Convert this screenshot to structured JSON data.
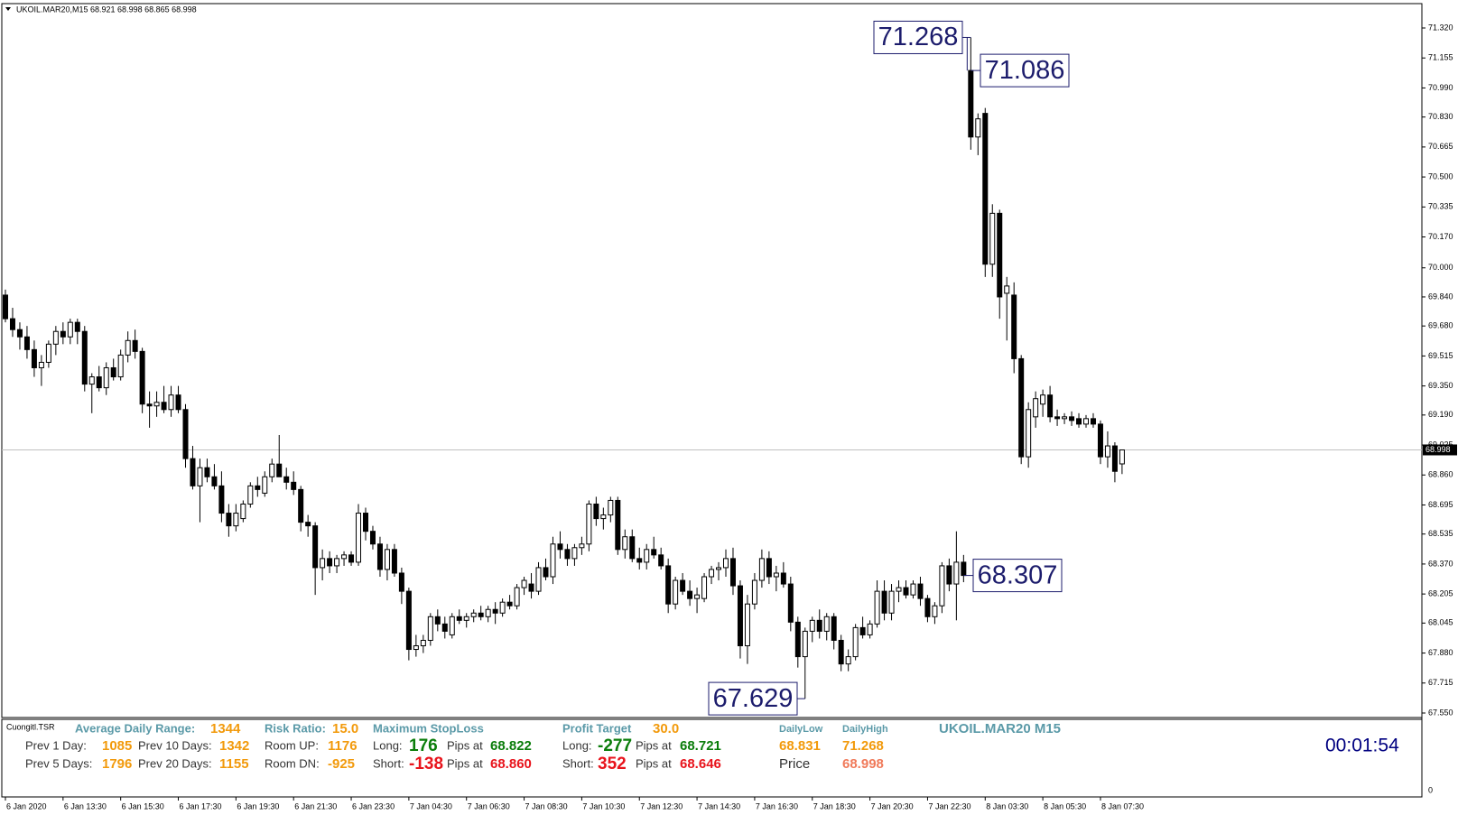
{
  "chart_data": {
    "type": "candlestick",
    "title": "UKOIL.MAR20,M15  68.921 68.998 68.865 68.998",
    "up_color": "#ffffff",
    "down_color": "#000000",
    "categories": [
      "6 Jan 2020",
      null,
      null,
      null,
      null,
      null,
      null,
      null,
      "6 Jan 13:30",
      null,
      null,
      null,
      null,
      null,
      null,
      null,
      "6 Jan 15:30",
      null,
      null,
      null,
      null,
      null,
      null,
      null,
      "6 Jan 17:30",
      null,
      null,
      null,
      null,
      null,
      null,
      null,
      "6 Jan 19:30",
      null,
      null,
      null,
      null,
      null,
      null,
      null,
      "6 Jan 21:30",
      null,
      null,
      null,
      null,
      null,
      null,
      null,
      "6 Jan 23:30",
      null,
      null,
      null,
      null,
      null,
      null,
      null,
      "7 Jan 04:30",
      null,
      null,
      null,
      null,
      null,
      null,
      null,
      "7 Jan 06:30",
      null,
      null,
      null,
      null,
      null,
      null,
      null,
      "7 Jan 08:30",
      null,
      null,
      null,
      null,
      null,
      null,
      null,
      "7 Jan 10:30",
      null,
      null,
      null,
      null,
      null,
      null,
      null,
      "7 Jan 12:30",
      null,
      null,
      null,
      null,
      null,
      null,
      null,
      "7 Jan 14:30",
      null,
      null,
      null,
      null,
      null,
      null,
      null,
      "7 Jan 16:30",
      null,
      null,
      null,
      null,
      null,
      null,
      null,
      "7 Jan 18:30",
      null,
      null,
      null,
      null,
      null,
      null,
      null,
      "7 Jan 20:30",
      null,
      null,
      null,
      null,
      null,
      null,
      null,
      "7 Jan 22:30",
      null,
      null,
      null,
      null,
      null,
      null,
      null,
      "8 Jan 03:30",
      null,
      null,
      null,
      null,
      null,
      null,
      null,
      "8 Jan 05:30",
      null,
      null,
      null,
      null,
      null,
      null,
      null,
      "8 Jan 07:30",
      null,
      null,
      null
    ],
    "open": [
      69.85,
      69.72,
      69.66,
      69.62,
      69.55,
      69.45,
      69.48,
      69.58,
      69.65,
      69.62,
      69.7,
      69.65,
      69.36,
      69.4,
      69.34,
      69.45,
      69.4,
      69.52,
      69.6,
      69.54,
      69.25,
      69.24,
      69.26,
      69.22,
      69.3,
      69.22,
      68.95,
      68.8,
      68.9,
      68.85,
      68.8,
      68.65,
      68.58,
      68.62,
      68.7,
      68.8,
      68.76,
      68.85,
      68.92,
      68.85,
      68.82,
      68.78,
      68.6,
      68.58,
      68.35,
      68.4,
      68.36,
      68.4,
      68.42,
      68.38,
      68.65,
      68.55,
      68.48,
      68.34,
      68.45,
      68.32,
      68.22,
      67.9,
      67.92,
      67.95,
      68.08,
      68.04,
      67.98,
      68.08,
      68.06,
      68.08,
      68.1,
      68.08,
      68.12,
      68.1,
      68.16,
      68.14,
      68.24,
      68.26,
      68.22,
      68.35,
      68.3,
      68.48,
      68.45,
      68.4,
      68.46,
      68.48,
      68.7,
      68.62,
      68.64,
      68.72,
      68.45,
      68.52,
      68.4,
      68.38,
      68.45,
      68.42,
      68.36,
      68.15,
      68.28,
      68.22,
      68.18,
      68.18,
      68.3,
      68.34,
      68.35,
      68.4,
      68.25,
      67.92,
      68.15,
      68.28,
      68.4,
      68.3,
      68.32,
      68.26,
      68.05,
      67.86,
      68.0,
      68.06,
      68.0,
      68.08,
      67.95,
      67.82,
      67.86,
      68.02,
      67.98,
      68.04,
      68.22,
      68.1,
      68.22,
      68.24,
      68.2,
      68.26,
      68.18,
      68.08,
      68.14,
      68.36,
      68.26,
      68.38,
      71.086,
      70.72,
      70.85,
      70.02,
      70.3,
      69.86,
      69.85,
      69.5,
      68.96,
      69.18,
      69.25,
      69.3,
      69.18,
      69.17,
      69.18,
      69.17,
      69.14,
      69.17,
      69.14,
      68.96,
      69.02,
      68.921
    ],
    "high": [
      69.88,
      69.78,
      69.7,
      69.68,
      69.6,
      69.52,
      69.6,
      69.68,
      69.7,
      69.72,
      69.72,
      69.68,
      69.42,
      69.46,
      69.48,
      69.5,
      69.55,
      69.65,
      69.66,
      69.56,
      69.32,
      69.32,
      69.35,
      69.35,
      69.35,
      69.25,
      69.02,
      68.95,
      68.95,
      68.92,
      68.88,
      68.7,
      68.7,
      68.72,
      68.82,
      68.85,
      68.88,
      68.95,
      69.08,
      68.9,
      68.88,
      68.8,
      68.64,
      68.6,
      68.45,
      68.44,
      68.42,
      68.44,
      68.44,
      68.7,
      68.68,
      68.58,
      68.52,
      68.48,
      68.48,
      68.35,
      68.24,
      67.98,
      67.98,
      68.1,
      68.12,
      68.08,
      68.1,
      68.12,
      68.1,
      68.12,
      68.14,
      68.14,
      68.16,
      68.18,
      68.2,
      68.26,
      68.3,
      68.32,
      68.38,
      68.4,
      68.52,
      68.55,
      68.48,
      68.48,
      68.52,
      68.72,
      68.74,
      68.68,
      68.74,
      68.74,
      68.56,
      68.56,
      68.46,
      68.48,
      68.52,
      68.46,
      68.4,
      68.3,
      68.32,
      68.28,
      68.24,
      68.32,
      68.36,
      68.38,
      68.45,
      68.46,
      68.28,
      68.2,
      68.32,
      68.45,
      68.44,
      68.36,
      68.38,
      68.3,
      68.08,
      68.02,
      68.08,
      68.12,
      68.1,
      68.1,
      67.98,
      67.9,
      68.04,
      68.08,
      68.06,
      68.28,
      68.28,
      68.26,
      68.28,
      68.28,
      68.28,
      68.3,
      68.2,
      68.16,
      68.38,
      68.4,
      68.55,
      68.42,
      71.268,
      70.85,
      70.88,
      70.35,
      70.32,
      69.95,
      69.92,
      69.52,
      69.26,
      69.32,
      69.33,
      69.35,
      69.22,
      69.2,
      69.21,
      69.2,
      69.19,
      69.2,
      69.16,
      69.1,
      69.04,
      68.998
    ],
    "low": [
      69.7,
      69.62,
      69.55,
      69.5,
      69.4,
      69.35,
      69.45,
      69.52,
      69.58,
      69.58,
      69.58,
      69.32,
      69.2,
      69.32,
      69.3,
      69.38,
      69.38,
      69.48,
      69.5,
      69.2,
      69.12,
      69.18,
      69.2,
      69.18,
      69.2,
      68.9,
      68.78,
      68.6,
      68.82,
      68.78,
      68.6,
      68.52,
      68.55,
      68.6,
      68.68,
      68.74,
      68.74,
      68.82,
      68.88,
      68.78,
      68.75,
      68.55,
      68.52,
      68.2,
      68.28,
      68.32,
      68.32,
      68.36,
      68.36,
      68.36,
      68.5,
      68.45,
      68.3,
      68.28,
      68.3,
      68.15,
      67.84,
      67.86,
      67.88,
      67.92,
      68.0,
      67.96,
      67.96,
      68.04,
      68.02,
      68.05,
      68.06,
      68.05,
      68.04,
      68.08,
      68.12,
      68.12,
      68.2,
      68.18,
      68.2,
      68.28,
      68.26,
      68.4,
      68.36,
      68.36,
      68.42,
      68.44,
      68.58,
      68.56,
      68.6,
      68.42,
      68.4,
      68.38,
      68.34,
      68.34,
      68.4,
      68.34,
      68.1,
      68.12,
      68.2,
      68.14,
      68.1,
      68.16,
      68.26,
      68.28,
      68.3,
      68.2,
      67.85,
      67.82,
      68.12,
      68.24,
      68.26,
      68.22,
      68.24,
      68.0,
      67.8,
      67.629,
      67.94,
      67.96,
      67.95,
      67.9,
      67.78,
      67.78,
      67.84,
      67.96,
      67.96,
      68.02,
      68.06,
      68.06,
      68.16,
      68.18,
      68.18,
      68.14,
      68.05,
      68.04,
      68.1,
      68.22,
      68.06,
      68.27,
      70.65,
      70.62,
      69.95,
      69.95,
      69.72,
      69.6,
      69.42,
      68.92,
      68.9,
      69.12,
      69.18,
      69.15,
      69.13,
      69.14,
      69.13,
      69.12,
      69.12,
      69.12,
      68.92,
      68.9,
      68.82,
      68.865
    ],
    "close": [
      69.72,
      69.66,
      69.62,
      69.55,
      69.45,
      69.48,
      69.58,
      69.65,
      69.62,
      69.7,
      69.65,
      69.36,
      69.4,
      69.34,
      69.45,
      69.4,
      69.52,
      69.6,
      69.54,
      69.25,
      69.24,
      69.26,
      69.22,
      69.3,
      69.22,
      68.95,
      68.8,
      68.9,
      68.85,
      68.8,
      68.65,
      68.58,
      68.65,
      68.7,
      68.8,
      68.78,
      68.85,
      68.92,
      68.85,
      68.82,
      68.78,
      68.6,
      68.58,
      68.35,
      68.4,
      68.36,
      68.4,
      68.42,
      68.38,
      68.65,
      68.55,
      68.48,
      68.34,
      68.45,
      68.32,
      68.22,
      67.9,
      67.92,
      67.95,
      68.08,
      68.04,
      68.0,
      68.08,
      68.06,
      68.08,
      68.1,
      68.08,
      68.12,
      68.1,
      68.16,
      68.14,
      68.24,
      68.28,
      68.22,
      68.35,
      68.3,
      68.48,
      68.45,
      68.4,
      68.46,
      68.48,
      68.7,
      68.62,
      68.64,
      68.72,
      68.45,
      68.52,
      68.4,
      68.38,
      68.45,
      68.42,
      68.36,
      68.15,
      68.28,
      68.22,
      68.18,
      68.2,
      68.3,
      68.34,
      68.35,
      68.4,
      68.25,
      67.92,
      68.15,
      68.28,
      68.4,
      68.3,
      68.32,
      68.26,
      68.05,
      67.86,
      68.0,
      68.06,
      68.0,
      68.08,
      67.95,
      67.82,
      67.86,
      68.02,
      67.98,
      68.04,
      68.22,
      68.1,
      68.22,
      68.24,
      68.2,
      68.26,
      68.18,
      68.08,
      68.14,
      68.36,
      68.26,
      68.38,
      68.307,
      70.72,
      70.82,
      70.02,
      70.3,
      69.84,
      69.9,
      69.5,
      68.96,
      69.22,
      69.28,
      69.3,
      69.18,
      69.17,
      69.18,
      69.16,
      69.14,
      69.17,
      69.14,
      68.96,
      69.02,
      68.88,
      68.998
    ],
    "ylim": [
      67.55,
      71.32
    ],
    "yticks": [
      {
        "value": 71.32,
        "label": "71.320"
      },
      71.155,
      {
        "value": 70.99,
        "label": "70.990"
      },
      {
        "value": 70.83,
        "label": "70.830"
      },
      70.665,
      {
        "value": 70.5,
        "label": "70.500"
      },
      70.335,
      {
        "value": 70.17,
        "label": "70.170"
      },
      {
        "value": 70,
        "label": "70.000"
      },
      {
        "value": 69.84,
        "label": "69.840"
      },
      {
        "value": 69.68,
        "label": "69.680"
      },
      69.515,
      {
        "value": 69.35,
        "label": "69.350"
      },
      {
        "value": 69.19,
        "label": "69.190"
      },
      69.025,
      {
        "value": 68.86,
        "label": "68.860"
      },
      68.695,
      68.535,
      {
        "value": 68.37,
        "label": "68.370"
      },
      68.205,
      68.045,
      {
        "value": 67.88,
        "label": "67.880"
      },
      67.715,
      {
        "value": 67.55,
        "label": "67.550"
      }
    ],
    "current_price": 68.998,
    "annotations": [
      71.268,
      71.086,
      68.307,
      67.629
    ]
  },
  "indicator_panel": {
    "name": "Cuongitl.TSR",
    "axis_tick": 0,
    "rows": [
      [
        "Average Daily Range:",
        "1344",
        "Risk Ratio:",
        "15.0",
        "Maximum StopLoss",
        "Profit Target",
        "30.0",
        "DailyLow",
        "DailyHigh",
        "UKOIL.MAR20 M15"
      ],
      [
        "Prev 1 Day:",
        "1085",
        "Prev 10 Days:",
        "1342",
        "Room UP:",
        "1176",
        "Long:",
        "176",
        "Pips at",
        "68.822",
        "Long:",
        "-277",
        "Pips at",
        "68.721",
        "68.831",
        "71.268",
        "00:01:54"
      ],
      [
        "Prev 5 Days:",
        "1796",
        "Prev 20 Days:",
        "1155",
        "Room DN:",
        "-925",
        "Short:",
        "-138",
        "Pips at",
        "68.860",
        "Short:",
        "352",
        "Pips at",
        "68.646",
        "Price",
        "68.998"
      ]
    ]
  }
}
